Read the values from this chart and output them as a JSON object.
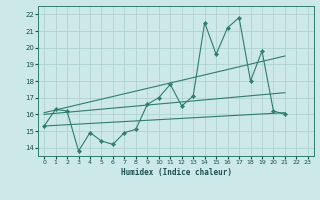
{
  "xlabel": "Humidex (Indice chaleur)",
  "background_color": "#cce8e8",
  "grid_color": "#aacfcf",
  "line_color": "#2e7d6e",
  "spine_color": "#2e7d6e",
  "tick_color": "#1a5050",
  "xlim": [
    -0.5,
    23.5
  ],
  "ylim": [
    13.5,
    22.5
  ],
  "xticks": [
    0,
    1,
    2,
    3,
    4,
    5,
    6,
    7,
    8,
    9,
    10,
    11,
    12,
    13,
    14,
    15,
    16,
    17,
    18,
    19,
    20,
    21,
    22,
    23
  ],
  "yticks": [
    14,
    15,
    16,
    17,
    18,
    19,
    20,
    21,
    22
  ],
  "line1_x": [
    0,
    1,
    2,
    3,
    4,
    5,
    6,
    7,
    8,
    9,
    10,
    11,
    12,
    13,
    14,
    15,
    16,
    17,
    18,
    19,
    20,
    21
  ],
  "line1_y": [
    15.3,
    16.3,
    16.2,
    13.8,
    14.9,
    14.4,
    14.2,
    14.9,
    15.1,
    16.6,
    17.0,
    17.8,
    16.5,
    17.1,
    21.5,
    19.6,
    21.2,
    21.8,
    18.0,
    19.8,
    16.2,
    16.0
  ],
  "line2_x": [
    0,
    21
  ],
  "line2_y": [
    16.0,
    17.3
  ],
  "line3_x": [
    0,
    21
  ],
  "line3_y": [
    15.3,
    16.1
  ],
  "line4_x": [
    0,
    21
  ],
  "line4_y": [
    16.1,
    19.5
  ]
}
